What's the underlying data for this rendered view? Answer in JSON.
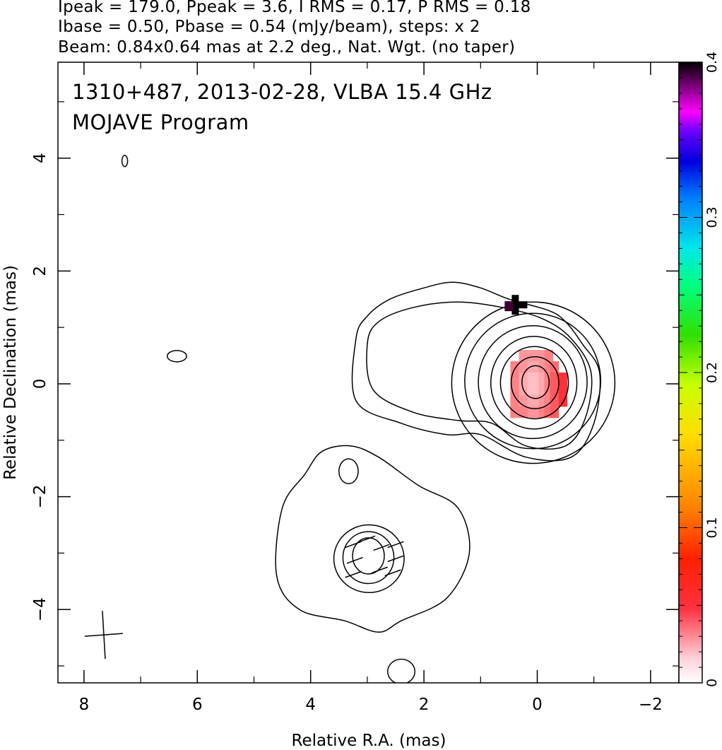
{
  "chart_data": {
    "type": "heatmap",
    "header_lines": [
      "Ipeak = 179.0, Ppeak = 3.6, I RMS = 0.17, P RMS = 0.18",
      "Ibase = 0.50, Pbase = 0.54 (mJy/beam), steps: x 2",
      "Beam: 0.84x0.64 mas at 2.2 deg., Nat. Wgt. (no taper)"
    ],
    "annotations": [
      "1310+487, 2013-02-28, VLBA 15.4 GHz",
      "MOJAVE Program"
    ],
    "xlabel": "Relative R.A. (mas)",
    "ylabel": "Relative Declination (mas)",
    "xlim": [
      8.46,
      -2.5
    ],
    "ylim": [
      -5.3,
      5.7
    ],
    "x_ticks": [
      8,
      6,
      4,
      2,
      0,
      -2
    ],
    "x_tick_labels": [
      "8",
      "6",
      "4",
      "2",
      "0",
      "−2"
    ],
    "y_ticks": [
      -4,
      -2,
      0,
      2,
      4
    ],
    "y_tick_labels": [
      "−4",
      "−2",
      "0",
      "2",
      "4"
    ],
    "colorbar": {
      "range": [
        0,
        0.4
      ],
      "ticks": [
        0,
        0.1,
        0.2,
        0.3,
        0.4
      ],
      "tick_labels": [
        "0",
        "0.1",
        "0.2",
        "0.3",
        "0.4"
      ]
    },
    "contours": [
      {
        "name": "core-l1",
        "center": [
          0.07,
          0.02
        ],
        "rx": 1.44,
        "ry": 1.43
      },
      {
        "name": "core-l2",
        "center": [
          0.08,
          0.05
        ],
        "rx": 1.2,
        "ry": 1.2
      },
      {
        "name": "core-l3",
        "center": [
          0.08,
          0.03
        ],
        "rx": 0.96,
        "ry": 1.0
      },
      {
        "name": "core-l4",
        "center": [
          0.06,
          0.02
        ],
        "rx": 0.76,
        "ry": 0.82
      },
      {
        "name": "core-l5",
        "center": [
          0.05,
          0.02
        ],
        "rx": 0.6,
        "ry": 0.64
      },
      {
        "name": "core-l6",
        "center": [
          0.04,
          0.02
        ],
        "rx": 0.42,
        "ry": 0.46
      },
      {
        "name": "core-l7",
        "center": [
          0.03,
          0.03
        ],
        "rx": 0.24,
        "ry": 0.29
      },
      {
        "name": "knot-l2",
        "center": [
          2.97,
          -3.1
        ],
        "rx": 0.62,
        "ry": 0.6
      },
      {
        "name": "knot-l3",
        "center": [
          2.98,
          -3.08
        ],
        "rx": 0.45,
        "ry": 0.46
      },
      {
        "name": "knot-l4",
        "center": [
          2.98,
          -3.05
        ],
        "rx": 0.28,
        "ry": 0.32
      },
      {
        "name": "blob-upper-left",
        "center": [
          7.28,
          3.95
        ],
        "rx": 0.05,
        "ry": 0.1
      },
      {
        "name": "blob-left",
        "center": [
          6.36,
          0.49
        ],
        "rx": 0.17,
        "ry": 0.1
      },
      {
        "name": "blob-small",
        "center": [
          3.33,
          -1.55
        ],
        "rx": 0.17,
        "ry": 0.22
      },
      {
        "name": "blob-bottom",
        "center": [
          2.4,
          -5.1
        ],
        "rx": 0.24,
        "ry": 0.22
      }
    ],
    "outer_contours": [
      {
        "name": "core-outer",
        "points": [
          [
            3.2,
            0.8
          ],
          [
            3.2,
            -0.3
          ],
          [
            2.4,
            -0.7
          ],
          [
            1.6,
            -0.9
          ],
          [
            1.0,
            -0.9
          ],
          [
            0.2,
            -1.3
          ],
          [
            -0.6,
            -1.3
          ],
          [
            -1.0,
            -0.7
          ],
          [
            -1.1,
            0.2
          ],
          [
            -0.8,
            0.7
          ],
          [
            -0.5,
            1.1
          ],
          [
            -0.2,
            1.3
          ],
          [
            0.5,
            1.5
          ],
          [
            1.0,
            1.7
          ],
          [
            1.5,
            1.8
          ],
          [
            2.0,
            1.7
          ],
          [
            2.6,
            1.5
          ],
          [
            3.0,
            1.2
          ]
        ]
      },
      {
        "name": "core-l1b",
        "points": [
          [
            3.0,
            0.7
          ],
          [
            2.9,
            -0.1
          ],
          [
            2.2,
            -0.5
          ],
          [
            1.4,
            -0.65
          ],
          [
            0.8,
            -0.7
          ],
          [
            0.2,
            -1.1
          ],
          [
            -0.5,
            -1.1
          ],
          [
            -0.85,
            -0.6
          ],
          [
            -0.95,
            0.2
          ],
          [
            -0.6,
            0.8
          ],
          [
            -0.1,
            1.15
          ],
          [
            0.6,
            1.35
          ],
          [
            1.4,
            1.45
          ],
          [
            2.2,
            1.35
          ],
          [
            2.8,
            1.1
          ]
        ]
      },
      {
        "name": "knot-outer",
        "points": [
          [
            4.1,
            -1.6
          ],
          [
            4.5,
            -2.2
          ],
          [
            4.6,
            -3.4
          ],
          [
            4.2,
            -4.0
          ],
          [
            3.4,
            -4.2
          ],
          [
            2.8,
            -4.4
          ],
          [
            2.4,
            -4.2
          ],
          [
            1.6,
            -3.8
          ],
          [
            1.2,
            -3.0
          ],
          [
            1.4,
            -2.2
          ],
          [
            2.1,
            -1.8
          ],
          [
            2.8,
            -1.3
          ],
          [
            3.3,
            -1.1
          ],
          [
            3.8,
            -1.2
          ]
        ]
      }
    ],
    "ticks_pol": [
      [
        3.0,
        -2.75,
        0.1
      ],
      [
        2.75,
        -2.9,
        0.1
      ],
      [
        3.22,
        -3.13,
        0.1
      ],
      [
        2.78,
        -3.3,
        0.1
      ],
      [
        2.5,
        -2.85,
        0.1
      ],
      [
        2.5,
        -3.1,
        0.05
      ],
      [
        2.55,
        -3.35,
        0.1
      ],
      [
        3.25,
        -2.85,
        0.1
      ],
      [
        3.25,
        -3.38,
        0.05
      ]
    ],
    "pol_pixels": [
      [
        0.25,
        0.5,
        0.04
      ],
      [
        0.1,
        0.5,
        0.04
      ],
      [
        0,
        0.5,
        0.04
      ],
      [
        -0.1,
        0.5,
        0.04
      ],
      [
        -0.2,
        0.5,
        0.05
      ],
      [
        0.4,
        0.3,
        0.05
      ],
      [
        0.25,
        0.3,
        0.04
      ],
      [
        0.1,
        0.3,
        0.03
      ],
      [
        0,
        0.3,
        0.03
      ],
      [
        -0.1,
        0.3,
        0.04
      ],
      [
        -0.2,
        0.3,
        0.05
      ],
      [
        -0.3,
        0.3,
        0.06
      ],
      [
        0.4,
        0.1,
        0.05
      ],
      [
        0.25,
        0.1,
        0.03
      ],
      [
        0.1,
        0.1,
        0.02
      ],
      [
        0,
        0.1,
        0.02
      ],
      [
        -0.1,
        0.1,
        0.03
      ],
      [
        -0.2,
        0.1,
        0.05
      ],
      [
        -0.3,
        0.1,
        0.07
      ],
      [
        -0.45,
        0.1,
        0.09
      ],
      [
        0.4,
        -0.1,
        0.05
      ],
      [
        0.25,
        -0.1,
        0.03
      ],
      [
        0.1,
        -0.1,
        0.02
      ],
      [
        0,
        -0.1,
        0.02
      ],
      [
        -0.1,
        -0.1,
        0.03
      ],
      [
        -0.2,
        -0.1,
        0.05
      ],
      [
        -0.3,
        -0.1,
        0.07
      ],
      [
        -0.45,
        -0.1,
        0.09
      ],
      [
        0.4,
        -0.3,
        0.05
      ],
      [
        0.25,
        -0.3,
        0.04
      ],
      [
        0.1,
        -0.3,
        0.03
      ],
      [
        0,
        -0.3,
        0.03
      ],
      [
        -0.1,
        -0.3,
        0.04
      ],
      [
        -0.2,
        -0.3,
        0.05
      ],
      [
        -0.3,
        -0.3,
        0.07
      ],
      [
        -0.45,
        -0.3,
        0.09
      ],
      [
        0.4,
        -0.5,
        0.05
      ],
      [
        0.25,
        -0.5,
        0.05
      ],
      [
        0.1,
        -0.5,
        0.04
      ],
      [
        0,
        -0.5,
        0.04
      ],
      [
        -0.1,
        -0.5,
        0.05
      ],
      [
        -0.2,
        -0.5,
        0.06
      ],
      [
        -0.3,
        -0.5,
        0.07
      ]
    ],
    "peak_marker": {
      "x": 0.4,
      "y": 1.4,
      "value": 0.4
    },
    "beam_cross": {
      "x": 7.65,
      "y": -4.45
    },
    "beam": {
      "major": 0.84,
      "minor": 0.64,
      "pa_deg": 2.2
    }
  }
}
